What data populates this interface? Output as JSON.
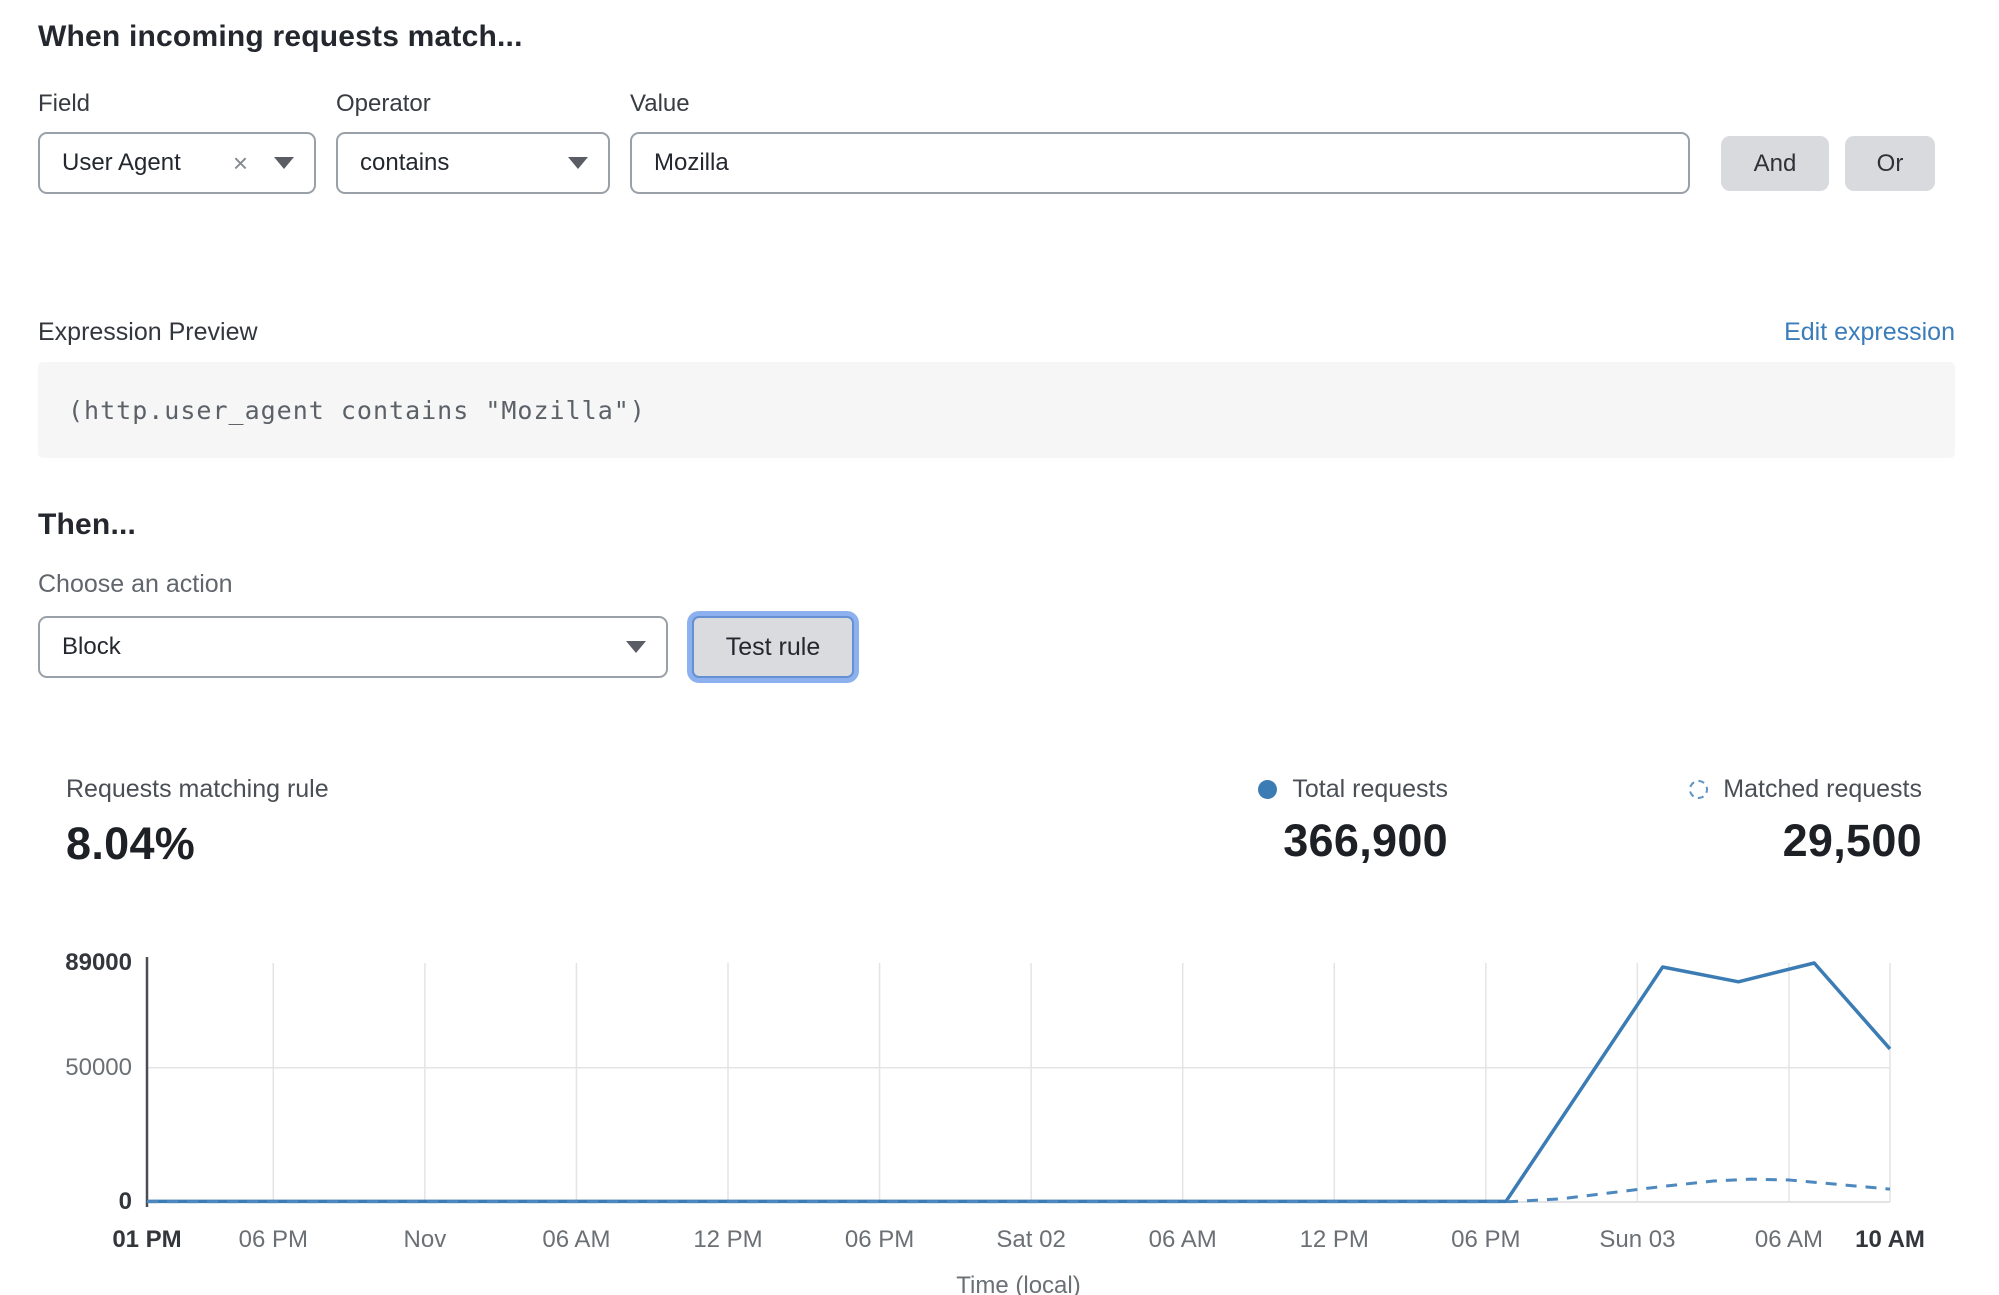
{
  "match_section": {
    "heading": "When incoming requests match...",
    "field": {
      "label": "Field",
      "value": "User Agent"
    },
    "operator": {
      "label": "Operator",
      "value": "contains"
    },
    "value": {
      "label": "Value",
      "value": "Mozilla"
    },
    "and_label": "And",
    "or_label": "Or"
  },
  "expression": {
    "label": "Expression Preview",
    "edit_link": "Edit expression",
    "code": "(http.user_agent contains \"Mozilla\")"
  },
  "then_section": {
    "heading": "Then...",
    "action_label": "Choose an action",
    "action_value": "Block",
    "test_button": "Test rule"
  },
  "stats": {
    "matching": {
      "label": "Requests matching rule",
      "value": "8.04%"
    },
    "total": {
      "label": "Total requests",
      "value": "366,900"
    },
    "matched": {
      "label": "Matched requests",
      "value": "29,500"
    }
  },
  "colors": {
    "accent_blue": "#3b7cb4",
    "dashed_blue": "#4d88be",
    "link_blue": "#3b7cba",
    "focus_ring": "#8db1ef",
    "grid_gray": "#e4e4e6",
    "axis_gray": "#4a4e54"
  },
  "chart_data": {
    "type": "line",
    "title": "",
    "xlabel": "Time (local)",
    "ylabel": "",
    "ylim": [
      0,
      89000
    ],
    "x_domain_hours": [
      0,
      69
    ],
    "grid": true,
    "legend_position": "top-right stats row",
    "y_ticks": [
      {
        "label": "89000",
        "value": 89000,
        "bold": true
      },
      {
        "label": "50000",
        "value": 50000,
        "bold": false
      },
      {
        "label": "0",
        "value": 0,
        "bold": true
      }
    ],
    "x_ticks": [
      {
        "label": "01 PM",
        "hour": 0,
        "bold": true
      },
      {
        "label": "06 PM",
        "hour": 5,
        "bold": false
      },
      {
        "label": "Nov",
        "hour": 11,
        "bold": false
      },
      {
        "label": "06 AM",
        "hour": 17,
        "bold": false
      },
      {
        "label": "12 PM",
        "hour": 23,
        "bold": false
      },
      {
        "label": "06 PM",
        "hour": 29,
        "bold": false
      },
      {
        "label": "Sat 02",
        "hour": 35,
        "bold": false
      },
      {
        "label": "06 AM",
        "hour": 41,
        "bold": false
      },
      {
        "label": "12 PM",
        "hour": 47,
        "bold": false
      },
      {
        "label": "06 PM",
        "hour": 53,
        "bold": false
      },
      {
        "label": "Sun 03",
        "hour": 59,
        "bold": false
      },
      {
        "label": "06 AM",
        "hour": 65,
        "bold": false
      },
      {
        "label": "10 AM",
        "hour": 69,
        "bold": true
      }
    ],
    "series": [
      {
        "name": "Total requests",
        "style": "solid",
        "color": "#3b7cb4",
        "points": [
          [
            0,
            250
          ],
          [
            53.8,
            250
          ],
          [
            60,
            87500
          ],
          [
            63,
            82000
          ],
          [
            66,
            89000
          ],
          [
            69,
            57000
          ]
        ]
      },
      {
        "name": "Matched requests",
        "style": "dashed",
        "color": "#4d88be",
        "points": [
          [
            0,
            120
          ],
          [
            54,
            150
          ],
          [
            56,
            1200
          ],
          [
            58,
            3500
          ],
          [
            60,
            5800
          ],
          [
            62,
            7800
          ],
          [
            63.5,
            8500
          ],
          [
            65,
            8200
          ],
          [
            67,
            6500
          ],
          [
            69,
            4800
          ]
        ]
      }
    ]
  }
}
